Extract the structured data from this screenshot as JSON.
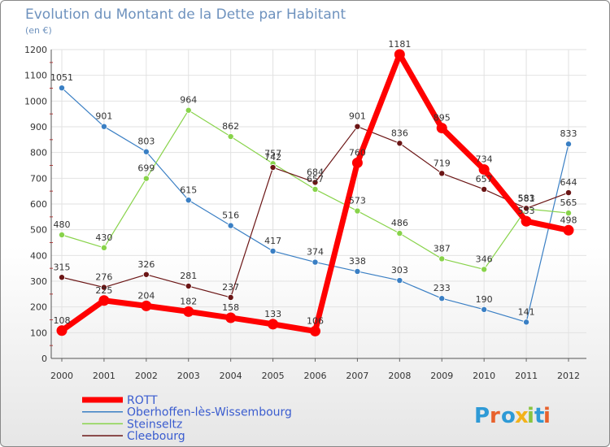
{
  "chart_data": {
    "type": "line",
    "title": "Evolution du Montant de la Dette par Habitant",
    "subtitle": "(en €)",
    "xlabel": "",
    "ylabel": "",
    "x": [
      "2000",
      "2001",
      "2002",
      "2003",
      "2004",
      "2005",
      "2006",
      "2007",
      "2008",
      "2009",
      "2010",
      "2011",
      "2012"
    ],
    "ylim": [
      0,
      1200
    ],
    "yticks": [
      0,
      100,
      200,
      300,
      400,
      500,
      600,
      700,
      800,
      900,
      1000,
      1100,
      1200
    ],
    "grid": true,
    "legend_position": "bottom-left",
    "series": [
      {
        "name": "ROTT",
        "color": "#ff0000",
        "values": [
          108,
          225,
          204,
          182,
          158,
          133,
          106,
          760,
          1181,
          895,
          734,
          533,
          498
        ],
        "labels": [
          "108",
          "225",
          "204",
          "182",
          "158",
          "133",
          "106",
          "760",
          "1181",
          "895",
          "734",
          "533",
          "498"
        ]
      },
      {
        "name": "Oberhoffen-lès-Wissembourg",
        "color": "#3a7fc4",
        "values": [
          1051,
          901,
          803,
          615,
          516,
          417,
          374,
          338,
          303,
          233,
          190,
          141,
          833
        ],
        "labels": [
          "1051",
          "901",
          "803",
          "615",
          "516",
          "417",
          "374",
          "338",
          "303",
          "233",
          "190",
          "141",
          "833"
        ]
      },
      {
        "name": "Steinseltz",
        "color": "#88d34a",
        "values": [
          480,
          430,
          699,
          964,
          862,
          757,
          657,
          573,
          486,
          387,
          346,
          581,
          565
        ],
        "labels": [
          "480",
          "430",
          "699",
          "964",
          "862",
          "757",
          "657",
          "573",
          "486",
          "387",
          "346",
          "581",
          "565"
        ]
      },
      {
        "name": "Cleebourg",
        "color": "#6b1515",
        "values": [
          315,
          276,
          326,
          281,
          237,
          742,
          684,
          901,
          836,
          719,
          657,
          583,
          644
        ],
        "labels": [
          "315",
          "276",
          "326",
          "281",
          "237",
          "742",
          "684",
          "901",
          "836",
          "719",
          "657",
          "583",
          "644"
        ]
      }
    ]
  },
  "logo": {
    "text": "Proxiti",
    "colors": [
      "#2e9ad6",
      "#e8612c",
      "#2e9ad6",
      "#f3b21a",
      "#8ac43f",
      "#2e9ad6",
      "#e8612c"
    ]
  }
}
